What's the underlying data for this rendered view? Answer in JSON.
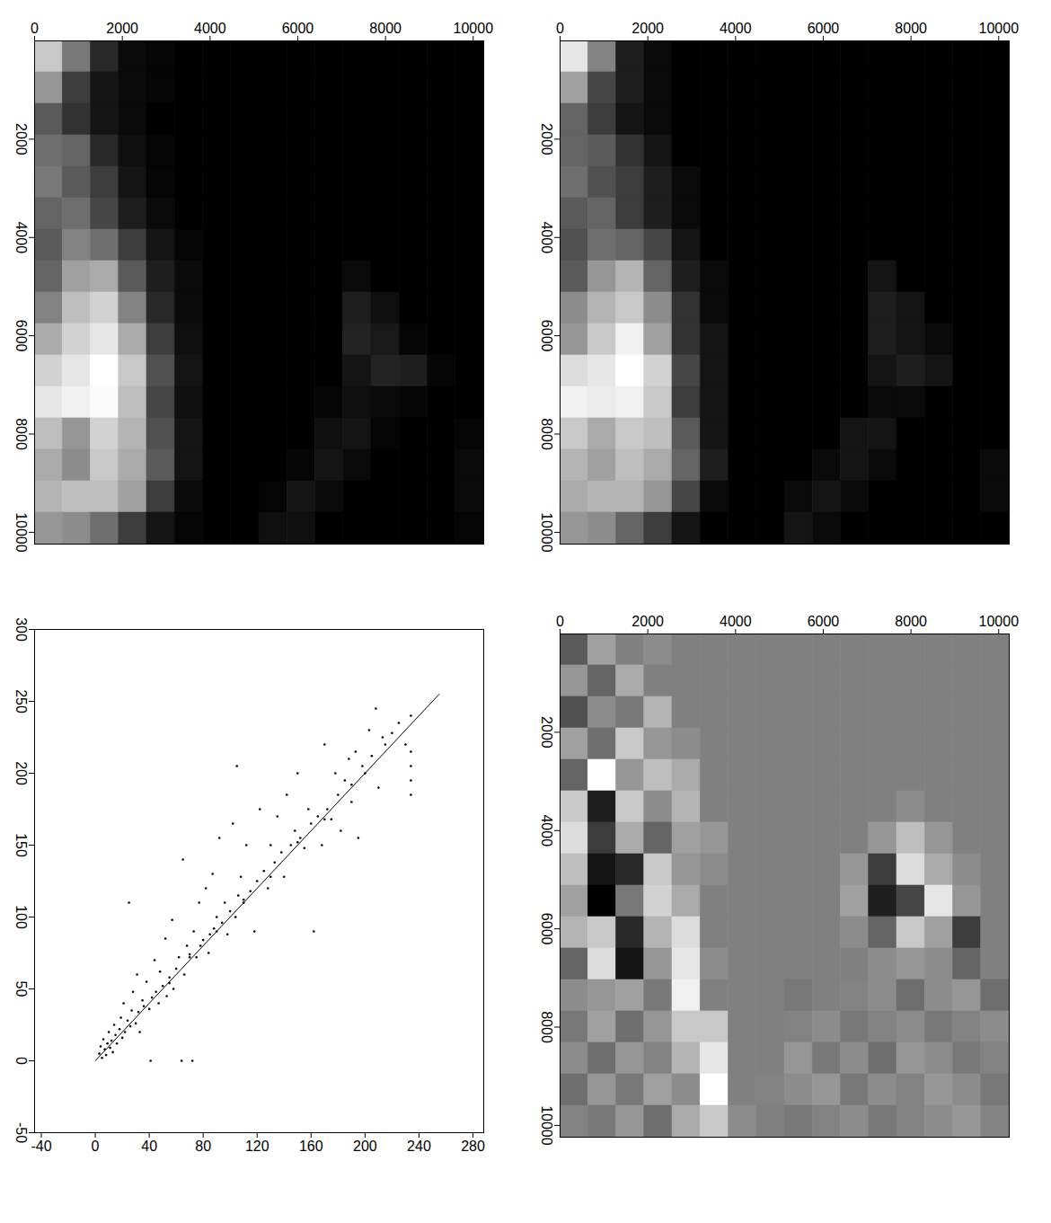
{
  "chart_data": [
    {
      "type": "heatmap",
      "xlim": [
        0,
        10240
      ],
      "ylim": [
        0,
        10240
      ],
      "xticks": [
        0,
        2000,
        4000,
        6000,
        8000,
        10000
      ],
      "yticks": [
        2000,
        4000,
        6000,
        8000,
        10000
      ],
      "x_bins": [
        0,
        640,
        1280,
        1920,
        2560,
        3200,
        3840,
        4480,
        5120,
        5760,
        6400,
        7040,
        7680,
        8320,
        8960,
        9600,
        10240
      ],
      "y_bins": [
        0,
        640,
        1280,
        1920,
        2560,
        3200,
        3840,
        4480,
        5120,
        5760,
        6400,
        7040,
        7680,
        8320,
        8960,
        9600,
        10240
      ],
      "cells": [
        [
          200,
          120,
          40,
          10,
          5,
          0,
          0,
          0,
          0,
          0,
          0,
          0,
          0,
          0,
          0,
          0
        ],
        [
          150,
          60,
          20,
          10,
          5,
          0,
          0,
          0,
          0,
          0,
          0,
          0,
          0,
          0,
          0,
          0
        ],
        [
          90,
          50,
          20,
          10,
          0,
          0,
          0,
          0,
          0,
          0,
          0,
          0,
          0,
          0,
          0,
          0
        ],
        [
          110,
          100,
          40,
          15,
          5,
          0,
          0,
          0,
          0,
          0,
          0,
          0,
          0,
          0,
          0,
          0
        ],
        [
          120,
          90,
          60,
          20,
          5,
          0,
          0,
          0,
          0,
          0,
          0,
          0,
          0,
          0,
          0,
          0
        ],
        [
          100,
          110,
          70,
          30,
          10,
          0,
          0,
          0,
          0,
          0,
          0,
          0,
          0,
          0,
          0,
          0
        ],
        [
          90,
          130,
          110,
          60,
          20,
          5,
          0,
          0,
          0,
          0,
          0,
          0,
          0,
          0,
          0,
          0
        ],
        [
          100,
          160,
          170,
          90,
          30,
          10,
          0,
          0,
          0,
          0,
          0,
          10,
          0,
          0,
          0,
          0
        ],
        [
          130,
          190,
          210,
          130,
          40,
          10,
          0,
          0,
          0,
          0,
          0,
          30,
          15,
          0,
          0,
          0
        ],
        [
          170,
          210,
          230,
          170,
          60,
          15,
          0,
          0,
          0,
          0,
          0,
          35,
          25,
          5,
          0,
          0
        ],
        [
          210,
          230,
          255,
          200,
          80,
          20,
          0,
          0,
          0,
          0,
          0,
          20,
          35,
          30,
          5,
          0
        ],
        [
          230,
          240,
          250,
          190,
          70,
          15,
          0,
          0,
          0,
          0,
          5,
          15,
          10,
          5,
          0,
          0
        ],
        [
          190,
          150,
          210,
          180,
          80,
          20,
          0,
          0,
          0,
          0,
          15,
          20,
          5,
          0,
          0,
          5
        ],
        [
          170,
          140,
          200,
          170,
          90,
          20,
          0,
          0,
          0,
          5,
          20,
          10,
          0,
          0,
          0,
          10
        ],
        [
          180,
          190,
          190,
          160,
          60,
          10,
          0,
          0,
          5,
          20,
          10,
          0,
          0,
          0,
          0,
          10
        ],
        [
          150,
          140,
          110,
          60,
          20,
          5,
          0,
          0,
          15,
          15,
          0,
          0,
          0,
          0,
          0,
          5
        ]
      ]
    },
    {
      "type": "heatmap",
      "xlim": [
        0,
        10240
      ],
      "ylim": [
        0,
        10240
      ],
      "xticks": [
        0,
        2000,
        4000,
        6000,
        8000,
        10000
      ],
      "yticks": [
        2000,
        4000,
        6000,
        8000,
        10000
      ],
      "x_bins": [
        0,
        640,
        1280,
        1920,
        2560,
        3200,
        3840,
        4480,
        5120,
        5760,
        6400,
        7040,
        7680,
        8320,
        8960,
        9600,
        10240
      ],
      "y_bins": [
        0,
        640,
        1280,
        1920,
        2560,
        3200,
        3840,
        4480,
        5120,
        5760,
        6400,
        7040,
        7680,
        8320,
        8960,
        9600,
        10240
      ],
      "cells": [
        [
          230,
          130,
          30,
          10,
          0,
          0,
          0,
          0,
          0,
          0,
          0,
          0,
          0,
          0,
          0,
          0
        ],
        [
          160,
          70,
          30,
          10,
          0,
          0,
          0,
          0,
          0,
          0,
          0,
          0,
          0,
          0,
          0,
          0
        ],
        [
          100,
          60,
          20,
          10,
          0,
          0,
          0,
          0,
          0,
          0,
          0,
          0,
          0,
          0,
          0,
          0
        ],
        [
          100,
          90,
          50,
          20,
          0,
          0,
          0,
          0,
          0,
          0,
          0,
          0,
          0,
          0,
          0,
          0
        ],
        [
          110,
          80,
          60,
          30,
          10,
          0,
          0,
          0,
          0,
          0,
          0,
          0,
          0,
          0,
          0,
          0
        ],
        [
          90,
          100,
          60,
          30,
          10,
          0,
          0,
          0,
          0,
          0,
          0,
          0,
          0,
          0,
          0,
          0
        ],
        [
          80,
          110,
          100,
          70,
          20,
          0,
          0,
          0,
          0,
          0,
          0,
          0,
          0,
          0,
          0,
          0
        ],
        [
          90,
          150,
          180,
          100,
          30,
          10,
          0,
          0,
          0,
          0,
          0,
          20,
          0,
          0,
          0,
          0
        ],
        [
          140,
          180,
          200,
          140,
          50,
          10,
          0,
          0,
          0,
          0,
          0,
          30,
          20,
          0,
          0,
          0
        ],
        [
          150,
          200,
          240,
          160,
          50,
          20,
          0,
          0,
          0,
          0,
          0,
          30,
          20,
          10,
          0,
          0
        ],
        [
          220,
          230,
          255,
          210,
          70,
          20,
          0,
          0,
          0,
          0,
          0,
          20,
          30,
          20,
          0,
          0
        ],
        [
          240,
          235,
          240,
          200,
          60,
          20,
          0,
          0,
          0,
          0,
          0,
          10,
          10,
          0,
          0,
          0
        ],
        [
          200,
          170,
          200,
          190,
          90,
          20,
          0,
          0,
          0,
          0,
          20,
          20,
          0,
          0,
          0,
          0
        ],
        [
          180,
          160,
          190,
          170,
          100,
          30,
          0,
          0,
          0,
          10,
          20,
          10,
          0,
          0,
          0,
          10
        ],
        [
          170,
          180,
          180,
          150,
          70,
          10,
          0,
          0,
          10,
          20,
          10,
          0,
          0,
          0,
          0,
          10
        ],
        [
          150,
          140,
          100,
          60,
          20,
          0,
          0,
          0,
          20,
          10,
          0,
          0,
          0,
          0,
          0,
          0
        ]
      ]
    },
    {
      "type": "scatter",
      "xlim": [
        -45,
        288
      ],
      "ylim": [
        -50,
        300
      ],
      "xticks": [
        -40,
        0,
        40,
        80,
        120,
        160,
        200,
        240,
        280
      ],
      "yticks": [
        -50,
        0,
        50,
        100,
        150,
        200,
        250,
        300
      ],
      "series": [
        {
          "type": "scatter",
          "marker": "dot",
          "color": "#000000",
          "x": [
            3,
            4,
            5,
            6,
            7,
            8,
            9,
            10,
            11,
            12,
            13,
            14,
            15,
            16,
            18,
            19,
            20,
            21,
            22,
            24,
            25,
            26,
            27,
            28,
            30,
            31,
            32,
            33,
            35,
            36,
            38,
            40,
            41,
            42,
            44,
            45,
            47,
            48,
            50,
            52,
            53,
            55,
            57,
            58,
            60,
            62,
            64,
            65,
            66,
            68,
            70,
            72,
            73,
            75,
            77,
            78,
            80,
            82,
            84,
            85,
            87,
            88,
            90,
            92,
            94,
            96,
            98,
            100,
            102,
            104,
            105,
            106,
            108,
            110,
            112,
            115,
            118,
            120,
            122,
            125,
            128,
            130,
            133,
            135,
            138,
            140,
            142,
            145,
            148,
            150,
            152,
            155,
            158,
            160,
            162,
            165,
            168,
            170,
            172,
            175,
            178,
            180,
            182,
            185,
            188,
            190,
            193,
            195,
            198,
            200,
            203,
            205,
            208,
            210,
            213,
            215,
            220,
            225,
            230,
            234,
            234,
            234,
            234,
            234,
            55,
            70,
            90,
            110,
            130,
            150,
            170,
            190
          ],
          "values": [
            5,
            10,
            2,
            15,
            8,
            4,
            12,
            20,
            9,
            14,
            6,
            25,
            18,
            12,
            22,
            30,
            16,
            40,
            20,
            28,
            110,
            24,
            35,
            48,
            26,
            60,
            34,
            20,
            42,
            38,
            55,
            36,
            0,
            44,
            70,
            48,
            40,
            62,
            52,
            85,
            45,
            58,
            98,
            50,
            64,
            72,
            0,
            140,
            60,
            80,
            74,
            0,
            90,
            72,
            110,
            80,
            84,
            120,
            75,
            88,
            130,
            92,
            100,
            155,
            96,
            110,
            88,
            104,
            165,
            100,
            205,
            115,
            128,
            110,
            150,
            118,
            90,
            125,
            175,
            132,
            120,
            150,
            138,
            170,
            145,
            128,
            185,
            150,
            160,
            200,
            155,
            148,
            175,
            165,
            90,
            170,
            150,
            220,
            175,
            168,
            200,
            185,
            160,
            195,
            210,
            180,
            215,
            155,
            205,
            200,
            230,
            212,
            245,
            190,
            225,
            220,
            228,
            235,
            220,
            185,
            195,
            205,
            215,
            240,
            54,
            72,
            90,
            112,
            128,
            152,
            168,
            192
          ]
        },
        {
          "type": "line",
          "line_style": "solid",
          "color": "#000000",
          "x": [
            0,
            255
          ],
          "values": [
            0,
            255
          ]
        }
      ]
    },
    {
      "type": "heatmap",
      "xlim": [
        0,
        10240
      ],
      "ylim": [
        0,
        10240
      ],
      "xticks": [
        0,
        2000,
        4000,
        6000,
        8000,
        10000
      ],
      "yticks": [
        2000,
        4000,
        6000,
        8000,
        10000
      ],
      "x_bins": [
        0,
        640,
        1280,
        1920,
        2560,
        3200,
        3840,
        4480,
        5120,
        5760,
        6400,
        7040,
        7680,
        8320,
        8960,
        9600,
        10240
      ],
      "y_bins": [
        0,
        640,
        1280,
        1920,
        2560,
        3200,
        3840,
        4480,
        5120,
        5760,
        6400,
        7040,
        7680,
        8320,
        8960,
        9600,
        10240
      ],
      "cells": [
        [
          90,
          160,
          128,
          140,
          128,
          128,
          128,
          128,
          128,
          128,
          128,
          128,
          128,
          128,
          128,
          128
        ],
        [
          150,
          100,
          170,
          128,
          128,
          128,
          128,
          128,
          128,
          128,
          128,
          128,
          128,
          128,
          128,
          128
        ],
        [
          80,
          140,
          120,
          180,
          128,
          128,
          128,
          128,
          128,
          128,
          128,
          128,
          128,
          128,
          128,
          128
        ],
        [
          160,
          110,
          200,
          150,
          140,
          128,
          128,
          128,
          128,
          128,
          128,
          128,
          128,
          128,
          128,
          128
        ],
        [
          100,
          255,
          150,
          190,
          170,
          128,
          128,
          128,
          128,
          128,
          128,
          128,
          128,
          128,
          128,
          128
        ],
        [
          200,
          30,
          200,
          140,
          180,
          128,
          128,
          128,
          128,
          128,
          128,
          128,
          140,
          128,
          128,
          128
        ],
        [
          220,
          60,
          170,
          100,
          160,
          150,
          128,
          128,
          128,
          128,
          128,
          150,
          190,
          150,
          128,
          128
        ],
        [
          190,
          20,
          40,
          200,
          150,
          140,
          128,
          128,
          128,
          128,
          150,
          60,
          220,
          170,
          140,
          128
        ],
        [
          160,
          0,
          120,
          210,
          170,
          128,
          128,
          128,
          128,
          128,
          160,
          30,
          70,
          230,
          150,
          128
        ],
        [
          180,
          200,
          40,
          180,
          220,
          128,
          128,
          128,
          128,
          128,
          140,
          100,
          200,
          160,
          60,
          128
        ],
        [
          100,
          220,
          20,
          150,
          230,
          140,
          128,
          128,
          128,
          128,
          128,
          140,
          150,
          140,
          100,
          128
        ],
        [
          140,
          150,
          160,
          120,
          240,
          128,
          128,
          128,
          120,
          128,
          130,
          140,
          110,
          140,
          150,
          110
        ],
        [
          120,
          160,
          110,
          150,
          200,
          200,
          128,
          128,
          130,
          140,
          120,
          130,
          140,
          120,
          130,
          140
        ],
        [
          140,
          110,
          150,
          130,
          180,
          230,
          128,
          128,
          150,
          120,
          140,
          110,
          150,
          140,
          120,
          130
        ],
        [
          110,
          150,
          120,
          160,
          140,
          255,
          128,
          130,
          140,
          150,
          120,
          140,
          130,
          150,
          140,
          120
        ],
        [
          130,
          120,
          150,
          110,
          170,
          200,
          140,
          128,
          120,
          130,
          140,
          120,
          130,
          140,
          150,
          130
        ]
      ]
    }
  ]
}
